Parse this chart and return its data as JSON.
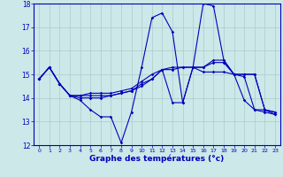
{
  "xlabel": "Graphe des températures (°c)",
  "background_color": "#cce8e8",
  "line_color": "#0000bb",
  "grid_color": "#aacccc",
  "xlim": [
    -0.5,
    23.5
  ],
  "ylim": [
    12,
    18
  ],
  "yticks": [
    12,
    13,
    14,
    15,
    16,
    17,
    18
  ],
  "xticks": [
    0,
    1,
    2,
    3,
    4,
    5,
    6,
    7,
    8,
    9,
    10,
    11,
    12,
    13,
    14,
    15,
    16,
    17,
    18,
    19,
    20,
    21,
    22,
    23
  ],
  "series": [
    {
      "x": [
        0,
        1,
        2,
        3,
        4,
        5,
        6,
        7,
        8,
        9,
        10,
        11,
        12,
        13,
        14,
        15,
        16,
        17,
        18,
        19,
        20,
        21,
        22,
        23
      ],
      "y": [
        14.8,
        15.3,
        14.6,
        14.1,
        13.9,
        13.5,
        13.2,
        13.2,
        12.1,
        13.4,
        15.3,
        17.4,
        17.6,
        16.8,
        13.8,
        15.3,
        18.0,
        17.9,
        15.6,
        15.0,
        13.9,
        13.5,
        13.4,
        13.3
      ]
    },
    {
      "x": [
        0,
        1,
        2,
        3,
        4,
        5,
        6,
        7,
        8,
        9,
        10,
        11,
        12,
        13,
        14,
        15,
        16,
        17,
        18,
        19,
        20,
        21,
        22,
        23
      ],
      "y": [
        14.8,
        15.3,
        14.6,
        14.1,
        14.0,
        14.0,
        14.0,
        14.1,
        14.2,
        14.3,
        14.5,
        14.8,
        15.2,
        15.2,
        15.3,
        15.3,
        15.3,
        15.6,
        15.6,
        15.0,
        14.9,
        13.5,
        13.5,
        13.4
      ]
    },
    {
      "x": [
        0,
        1,
        2,
        3,
        4,
        5,
        6,
        7,
        8,
        9,
        10,
        11,
        12,
        13,
        14,
        15,
        16,
        17,
        18,
        19,
        20,
        21,
        22,
        23
      ],
      "y": [
        14.8,
        15.3,
        14.6,
        14.1,
        14.1,
        14.1,
        14.1,
        14.1,
        14.2,
        14.3,
        14.6,
        14.8,
        15.2,
        15.3,
        15.3,
        15.3,
        15.1,
        15.1,
        15.1,
        15.0,
        15.0,
        15.0,
        13.5,
        13.4
      ]
    },
    {
      "x": [
        0,
        1,
        2,
        3,
        4,
        5,
        6,
        7,
        8,
        9,
        10,
        11,
        12,
        13,
        14,
        15,
        16,
        17,
        18,
        19,
        20,
        21,
        22,
        23
      ],
      "y": [
        14.8,
        15.3,
        14.6,
        14.1,
        14.1,
        14.2,
        14.2,
        14.2,
        14.3,
        14.4,
        14.7,
        15.0,
        15.2,
        13.8,
        13.8,
        15.3,
        15.3,
        15.5,
        15.5,
        15.0,
        15.0,
        15.0,
        13.5,
        13.3
      ]
    }
  ]
}
